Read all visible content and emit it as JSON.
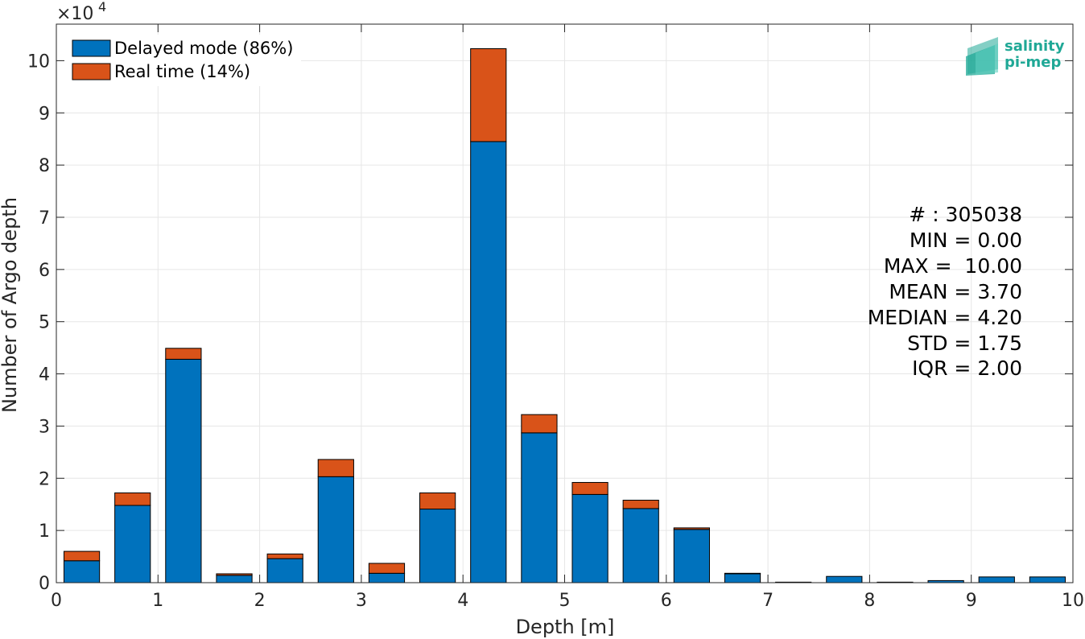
{
  "chart_data": {
    "type": "bar",
    "stacked": true,
    "title": "",
    "xlabel": "Depth [m]",
    "ylabel": "Number of Argo depth",
    "y_exponent_label": "×10",
    "y_exponent_power": "4",
    "xlim": [
      0,
      10
    ],
    "ylim": [
      0,
      10.7
    ],
    "x_ticks": [
      "0",
      "1",
      "2",
      "3",
      "4",
      "5",
      "6",
      "7",
      "8",
      "9",
      "10"
    ],
    "y_ticks": [
      "0",
      "1",
      "2",
      "3",
      "4",
      "5",
      "6",
      "7",
      "8",
      "9",
      "10"
    ],
    "bar_width": 0.35,
    "x": [
      0.25,
      0.75,
      1.25,
      1.75,
      2.25,
      2.75,
      3.25,
      3.75,
      4.25,
      4.75,
      5.25,
      5.75,
      6.25,
      6.75,
      7.25,
      7.75,
      8.25,
      8.75,
      9.25,
      9.75
    ],
    "series": [
      {
        "name": "Delayed mode (86%)",
        "color": "#0072bd",
        "values": [
          0.42,
          1.48,
          4.28,
          0.14,
          0.46,
          2.03,
          0.18,
          1.41,
          8.45,
          2.87,
          1.69,
          1.42,
          1.02,
          0.17,
          0.01,
          0.12,
          0.01,
          0.04,
          0.11,
          0.11
        ]
      },
      {
        "name": "Real time (14%)",
        "color": "#d95319",
        "values": [
          0.18,
          0.24,
          0.21,
          0.03,
          0.09,
          0.33,
          0.19,
          0.31,
          1.78,
          0.35,
          0.23,
          0.16,
          0.03,
          0.01,
          0.0,
          0.0,
          0.0,
          0.0,
          0.0,
          0.0
        ]
      }
    ],
    "grid": true,
    "legend_position": "top-left",
    "stats": [
      "# : 305038",
      "MIN = 0.00",
      "MAX =  10.00",
      "MEAN = 3.70",
      "MEDIAN = 4.20",
      "STD = 1.75",
      "IQR = 2.00"
    ]
  },
  "logo": {
    "line1": "salinity",
    "line2": "pi-mep",
    "color": "#1fa896"
  }
}
